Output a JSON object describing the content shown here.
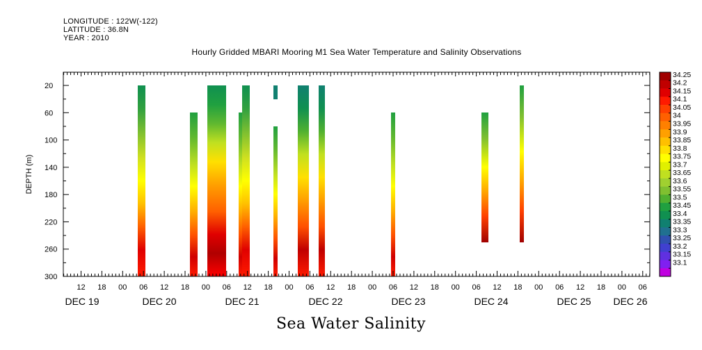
{
  "header": {
    "longitude": "LONGITUDE : 122W(-122)",
    "latitude": "LATITUDE : 36.8N",
    "year": "YEAR : 2010"
  },
  "chart_data": {
    "type": "heatmap",
    "title": "Hourly Gridded MBARI Mooring M1 Sea Water Temperature and Salinity Observations",
    "xlabel": "Sea Water Salinity",
    "ylabel": "DEPTH (m)",
    "ylim": [
      300,
      0
    ],
    "y_ticks": [
      20,
      60,
      100,
      140,
      180,
      220,
      260,
      300
    ],
    "x_hour_ticks": [
      "12",
      "18",
      "00",
      "06",
      "12",
      "18",
      "00",
      "06",
      "12",
      "18",
      "00",
      "06",
      "12",
      "18",
      "00",
      "06",
      "12",
      "18",
      "00",
      "06",
      "12",
      "18",
      "00",
      "06",
      "12",
      "18",
      "00",
      "06"
    ],
    "x_day_labels": [
      "DEC 19",
      "DEC 20",
      "DEC 21",
      "DEC 22",
      "DEC 23",
      "DEC 24",
      "DEC 25",
      "DEC 26"
    ],
    "colorbar_levels": [
      "34.25",
      "34.2",
      "34.15",
      "34.1",
      "34.05",
      "34",
      "33.95",
      "33.9",
      "33.85",
      "33.8",
      "33.75",
      "33.7",
      "33.65",
      "33.6",
      "33.55",
      "33.5",
      "33.45",
      "33.4",
      "33.35",
      "33.3",
      "33.25",
      "33.2",
      "33.15",
      "33.1"
    ],
    "colorbar_colors": [
      "#a00000",
      "#c00000",
      "#e00000",
      "#ff1a00",
      "#ff4000",
      "#ff6000",
      "#ff8000",
      "#ffa000",
      "#ffc000",
      "#ffe000",
      "#ffff00",
      "#e0f000",
      "#c0e020",
      "#a0d030",
      "#80c030",
      "#50b030",
      "#20a040",
      "#109050",
      "#108070",
      "#207090",
      "#3050b0",
      "#4040d0",
      "#6030e0",
      "#8020f0",
      "#c000e0"
    ],
    "columns": [
      {
        "time": "Dec 20 06:00",
        "depth_range": [
          20,
          300
        ]
      },
      {
        "time": "Dec 20 19:00",
        "depth_range": [
          60,
          300
        ]
      },
      {
        "time": "Dec 21 02:00-06:00",
        "depth_range": [
          20,
          300
        ]
      },
      {
        "time": "Dec 21 11:00",
        "depth_range": [
          60,
          300
        ]
      },
      {
        "time": "Dec 21 13:00",
        "depth_range": [
          20,
          300
        ]
      },
      {
        "time": "Dec 21 19:00",
        "depth_range": [
          20,
          300
        ]
      },
      {
        "time": "Dec 22 03:00-06:00",
        "depth_range": [
          20,
          300
        ]
      },
      {
        "time": "Dec 22 10:00",
        "depth_range": [
          20,
          300
        ]
      },
      {
        "time": "Dec 23 06:00",
        "depth_range": [
          60,
          300
        ]
      },
      {
        "time": "Dec 24 09:00",
        "depth_range": [
          60,
          250
        ]
      },
      {
        "time": "Dec 24 19:00",
        "depth_range": [
          20,
          250
        ]
      }
    ]
  }
}
